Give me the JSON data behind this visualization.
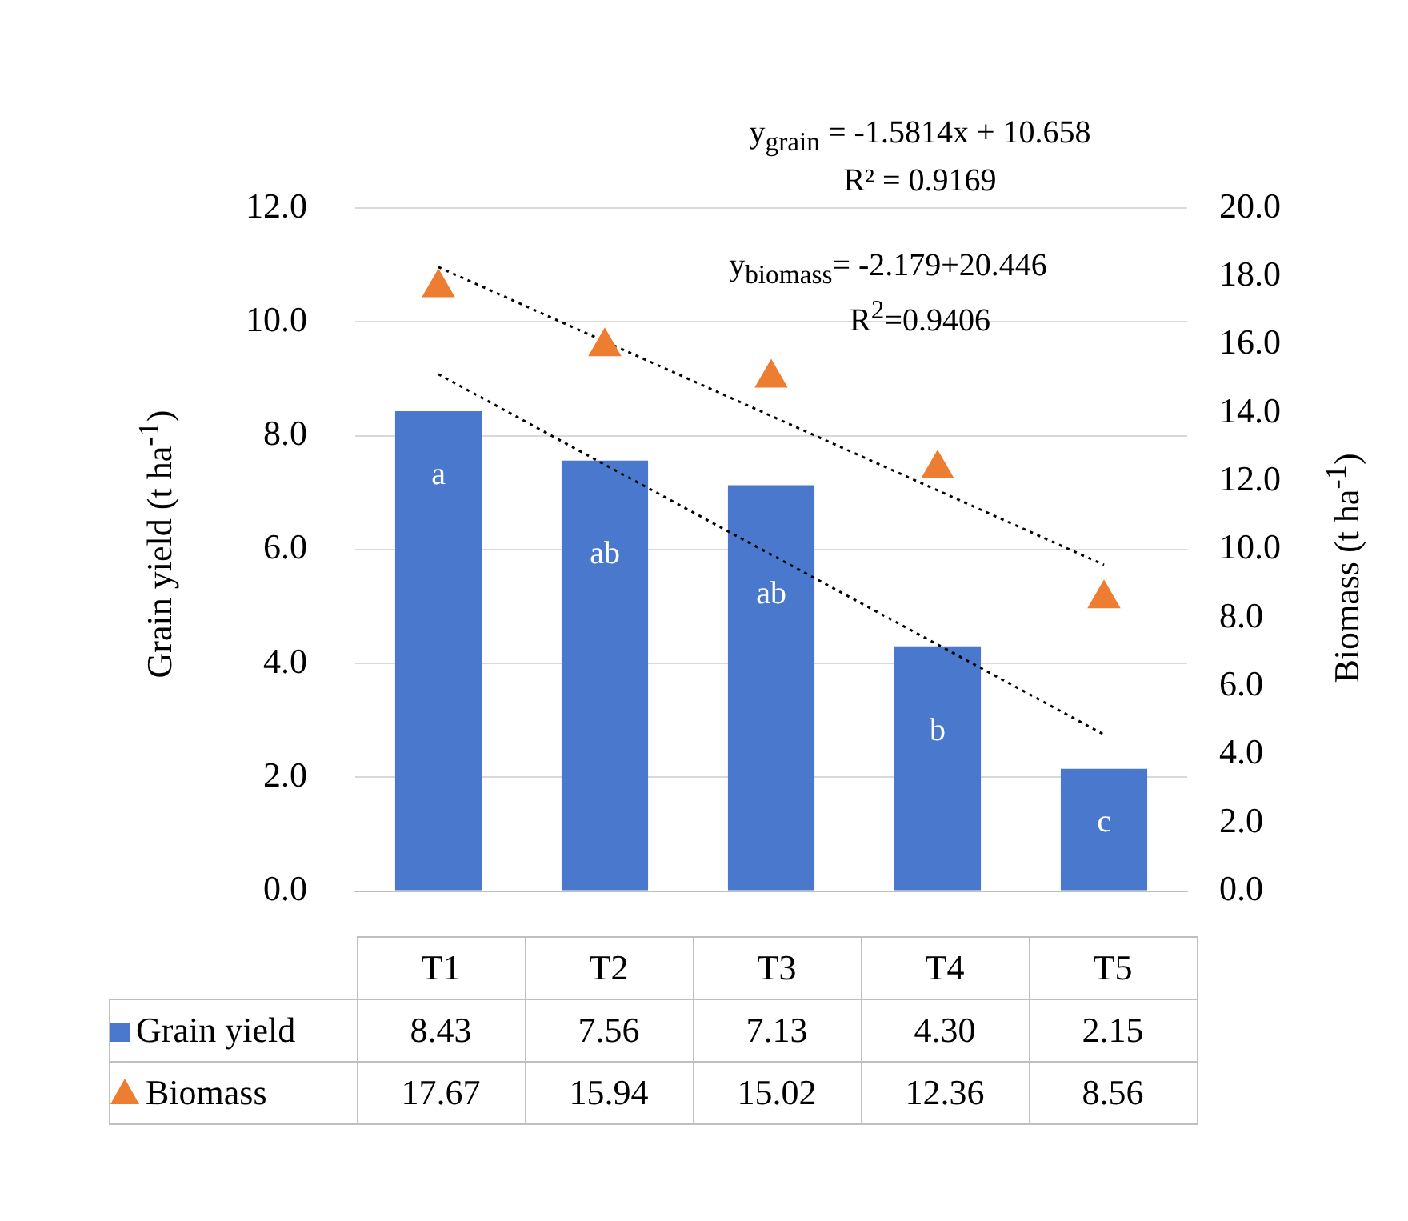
{
  "chart_data": {
    "type": "bar",
    "categories": [
      "T1",
      "T2",
      "T3",
      "T4",
      "T5"
    ],
    "ylabel": "Grain yield (t ha$^{-1}$)",
    "y2label": "Biomass (t ha$^{-1}$)",
    "ylim": [
      0,
      12
    ],
    "yticks": [
      {
        "value": 0,
        "label": "0.0"
      },
      {
        "value": 2,
        "label": "2.0"
      },
      {
        "value": 4,
        "label": "4.0"
      },
      {
        "value": 6,
        "label": "6.0"
      },
      {
        "value": 8,
        "label": "8.0"
      },
      {
        "value": 10,
        "label": "10.0"
      },
      {
        "value": 12,
        "label": "12.0"
      }
    ],
    "y2lim": [
      0,
      20
    ],
    "y2ticks": [
      {
        "value": 0,
        "label": "0.0"
      },
      {
        "value": 2,
        "label": "2.0"
      },
      {
        "value": 4,
        "label": "4.0"
      },
      {
        "value": 6,
        "label": "6.0"
      },
      {
        "value": 8,
        "label": "8.0"
      },
      {
        "value": 10,
        "label": "10.0"
      },
      {
        "value": 12,
        "label": "12.0"
      },
      {
        "value": 14,
        "label": "14.0"
      },
      {
        "value": 16,
        "label": "16.0"
      },
      {
        "value": 18,
        "label": "18.0"
      },
      {
        "value": 20,
        "label": "20.0"
      }
    ],
    "series": [
      {
        "name": "Grain yield",
        "color": "#4a78cc",
        "values": [
          8.43,
          7.56,
          7.13,
          4.3,
          2.15
        ],
        "value_labels": [
          "8.43",
          "7.56",
          "7.13",
          "4.30",
          "2.15"
        ]
      },
      {
        "name": "Biomass",
        "type": "scatter",
        "axis": "y2",
        "marker": "triangle",
        "color": "#ed7d31",
        "values": [
          17.67,
          15.94,
          15.02,
          12.36,
          8.56
        ],
        "value_labels": [
          "17.67",
          "15.94",
          "15.02",
          "12.36",
          "8.56"
        ]
      },
      {
        "type": "line",
        "line_style": "dotted",
        "color": "#000000",
        "values": [
          9.08,
          7.49,
          5.91,
          4.33,
          2.75
        ]
      },
      {
        "type": "line",
        "axis": "y2",
        "line_style": "dotted",
        "color": "#000000",
        "values": [
          18.27,
          16.09,
          13.91,
          11.73,
          9.55
        ]
      }
    ],
    "grid": "y",
    "legend": "bottom",
    "annotations": [
      "y$_{grain}$ = -1.5814x + 10.658",
      "R² = 0.9169",
      "y$_{biomass}$= -2.179+20.446",
      "R$^{2}$=0.9406",
      "a",
      "ab",
      "ab",
      "b",
      "c"
    ]
  }
}
